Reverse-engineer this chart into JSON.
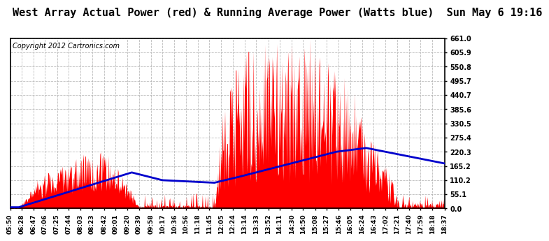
{
  "title": "West Array Actual Power (red) & Running Average Power (Watts blue)  Sun May 6 19:16",
  "copyright": "Copyright 2012 Cartronics.com",
  "yticks": [
    0.0,
    55.1,
    110.2,
    165.2,
    220.3,
    275.4,
    330.5,
    385.6,
    440.7,
    495.7,
    550.8,
    605.9,
    661.0
  ],
  "ymax": 661.0,
  "ymin": 0.0,
  "bg_color": "#ffffff",
  "plot_bg_color": "#ffffff",
  "grid_color": "#aaaaaa",
  "red_color": "#ff0000",
  "blue_color": "#0000cc",
  "title_fontsize": 11,
  "copyright_fontsize": 7,
  "xtick_labels": [
    "05:50",
    "06:28",
    "06:47",
    "07:06",
    "07:25",
    "07:44",
    "08:03",
    "08:23",
    "08:42",
    "09:01",
    "09:20",
    "09:39",
    "09:58",
    "10:17",
    "10:36",
    "10:56",
    "11:18",
    "11:45",
    "12:05",
    "12:24",
    "13:14",
    "13:33",
    "13:52",
    "14:11",
    "14:30",
    "14:50",
    "15:08",
    "15:27",
    "15:46",
    "16:05",
    "16:24",
    "16:43",
    "17:02",
    "17:21",
    "17:40",
    "17:59",
    "18:18",
    "18:37"
  ],
  "n_points": 760
}
